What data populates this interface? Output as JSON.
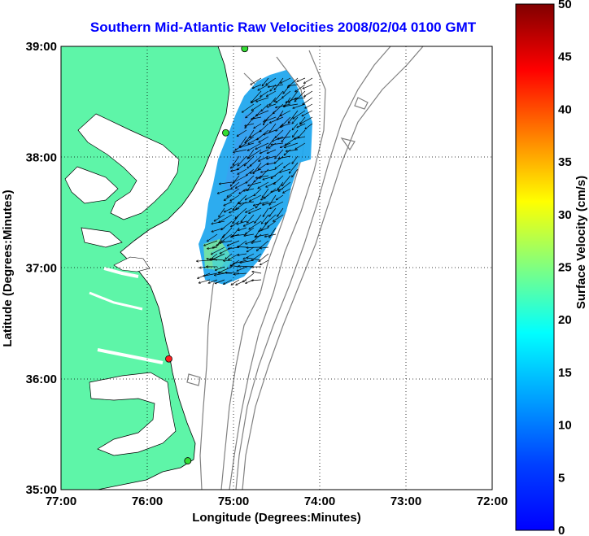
{
  "title": "Southern Mid-Atlantic Raw Velocities 2008/02/04 0100 GMT",
  "x_axis": {
    "label": "Longitude (Degrees:Minutes)",
    "ticks": [
      "77:00",
      "76:00",
      "75:00",
      "74:00",
      "73:00",
      "72:00"
    ]
  },
  "y_axis": {
    "label": "Latitude (Degrees:Minutes)",
    "ticks": [
      "39:00",
      "38:00",
      "37:00",
      "36:00",
      "35:00"
    ]
  },
  "colorbar": {
    "label": "Surface Velocity (cm/s)",
    "ticks": [
      "0",
      "5",
      "10",
      "15",
      "20",
      "25",
      "30",
      "35",
      "40",
      "45",
      "50"
    ],
    "range": [
      0,
      50
    ],
    "colormap": "jet"
  },
  "map": {
    "extent_lon": [
      -77,
      -72
    ],
    "extent_lat": [
      35,
      39
    ],
    "grid": "dotted",
    "land_color": "#5ef5a8",
    "bathymetry_color": "#808080",
    "station_markers": [
      {
        "status": "green",
        "lon": -74.87,
        "lat": 38.98
      },
      {
        "status": "green",
        "lon": -75.09,
        "lat": 38.22
      },
      {
        "status": "red",
        "lon": -75.75,
        "lat": 36.18
      },
      {
        "status": "green",
        "lon": -75.53,
        "lat": 35.26
      }
    ]
  }
}
